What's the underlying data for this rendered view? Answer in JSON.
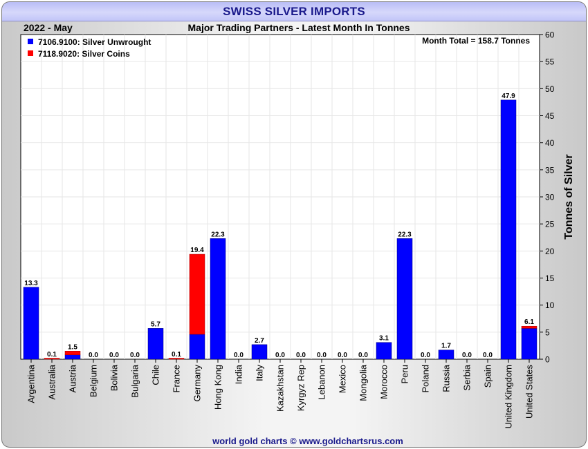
{
  "title": "SWISS SILVER IMPORTS",
  "period": "2022 - May",
  "subtitle": "Major Trading Partners - Latest Month In Tonnes",
  "month_total": "Month Total = 158.7 Tonnes",
  "footer": "world gold charts © www.goldchartsrus.com",
  "colors": {
    "unwrought": "#0000ff",
    "coins": "#ff0000"
  },
  "chart_data": {
    "type": "bar",
    "stacked": true,
    "categories": [
      "Argentina",
      "Australia",
      "Austria",
      "Belgium",
      "Bolivia",
      "Bulgaria",
      "Chile",
      "France",
      "Germany",
      "Hong Kong",
      "India",
      "Italy",
      "Kazakhstan",
      "Kyrgyz Rep",
      "Lebanon",
      "Mexico",
      "Mongolia",
      "Morocco",
      "Peru",
      "Poland",
      "Russia",
      "Serbia",
      "Spain",
      "United Kingdom",
      "United States"
    ],
    "series": [
      {
        "name": "7106.9100: Silver Unwrought",
        "values": [
          13.3,
          0.0,
          0.8,
          0.0,
          0.0,
          0.0,
          5.7,
          0.0,
          4.6,
          22.3,
          0.0,
          2.7,
          0.0,
          0.0,
          0.0,
          0.0,
          0.0,
          3.1,
          22.3,
          0.0,
          1.7,
          0.0,
          0.0,
          47.9,
          5.7
        ]
      },
      {
        "name": "7118.9020: Silver Coins",
        "values": [
          0.0,
          0.1,
          0.7,
          0.0,
          0.0,
          0.0,
          0.0,
          0.1,
          14.8,
          0.0,
          0.0,
          0.0,
          0.0,
          0.0,
          0.0,
          0.0,
          0.0,
          0.0,
          0.0,
          0.0,
          0.0,
          0.0,
          0.0,
          0.0,
          0.4
        ]
      }
    ],
    "totals": [
      "13.3",
      "0.1",
      "1.5",
      "0.0",
      "0.0",
      "0.0",
      "5.7",
      "0.1",
      "19.4",
      "22.3",
      "0.0",
      "2.7",
      "0.0",
      "0.0",
      "0.0",
      "0.0",
      "0.0",
      "3.1",
      "22.3",
      "0.0",
      "1.7",
      "0.0",
      "0.0",
      "47.9",
      "6.1"
    ],
    "ylabel": "Tonnes of Silver",
    "ylim": [
      0,
      60
    ],
    "yticks": [
      0,
      5,
      10,
      15,
      20,
      25,
      30,
      35,
      40,
      45,
      50,
      55,
      60
    ],
    "grid": true,
    "legend_position": "top-left",
    "y_axis_side": "right"
  }
}
